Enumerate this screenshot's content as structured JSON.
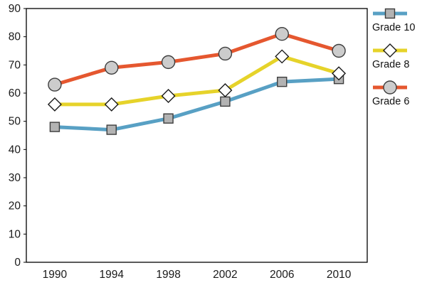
{
  "chart_data": {
    "type": "line",
    "title": "",
    "xlabel": "",
    "ylabel": "",
    "categories": [
      "1990",
      "1994",
      "1998",
      "2002",
      "2006",
      "2010"
    ],
    "series": [
      {
        "name": "Grade 10",
        "marker": "square",
        "color": "#58A0C4",
        "marker_fill": "#b3b3b3",
        "values": [
          48,
          47,
          51,
          57,
          64,
          65
        ]
      },
      {
        "name": "Grade 8",
        "marker": "diamond",
        "color": "#E6D32A",
        "marker_fill": "#ffffff",
        "values": [
          56,
          56,
          59,
          61,
          73,
          67
        ]
      },
      {
        "name": "Grade 6",
        "marker": "circle",
        "color": "#E5572F",
        "marker_fill": "#cccccc",
        "values": [
          63,
          69,
          71,
          74,
          81,
          75
        ]
      }
    ],
    "ylim": [
      0,
      90
    ],
    "ytick_step": 10,
    "grid": false,
    "legend_position": "right"
  }
}
